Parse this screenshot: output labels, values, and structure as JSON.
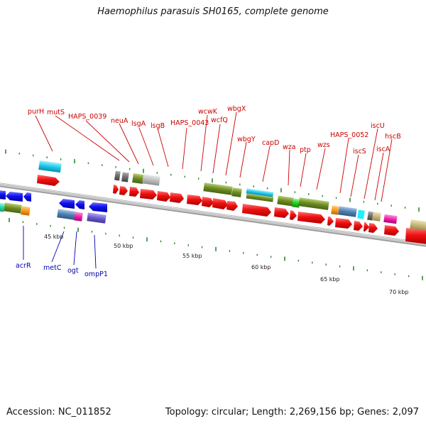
{
  "title": "Haemophilus parasuis SH0165, complete genome",
  "accession": "Accession: NC_011852",
  "summary": "Topology: circular; Length: 2,269,156 bp; Genes: 2,097",
  "kbp_labels": [
    "45 kbp",
    "50 kbp",
    "55 kbp",
    "60 kbp",
    "65 kbp",
    "70 kbp"
  ],
  "top_gene_labels": [
    "purH",
    "mutS",
    "HAPS_0039",
    "neuA",
    "lsgA",
    "lsgB",
    "HAPS_0043",
    "wcwK",
    "wcfQ",
    "wbgX",
    "wbgY",
    "capD",
    "wza",
    "ptp",
    "wzs",
    "HAPS_0052",
    "iscS",
    "iscU",
    "iscA",
    "hscB"
  ],
  "bottom_gene_labels": [
    "acrR",
    "metC",
    "ogt",
    "ompP1"
  ],
  "colors": {
    "forward_label": "#cc0000",
    "reverse_label": "#0000aa",
    "backbone": "#777777",
    "ticks": "#2a8a2a",
    "forward_cds": "#ee1111",
    "reverse_cds": "#1111ee"
  }
}
